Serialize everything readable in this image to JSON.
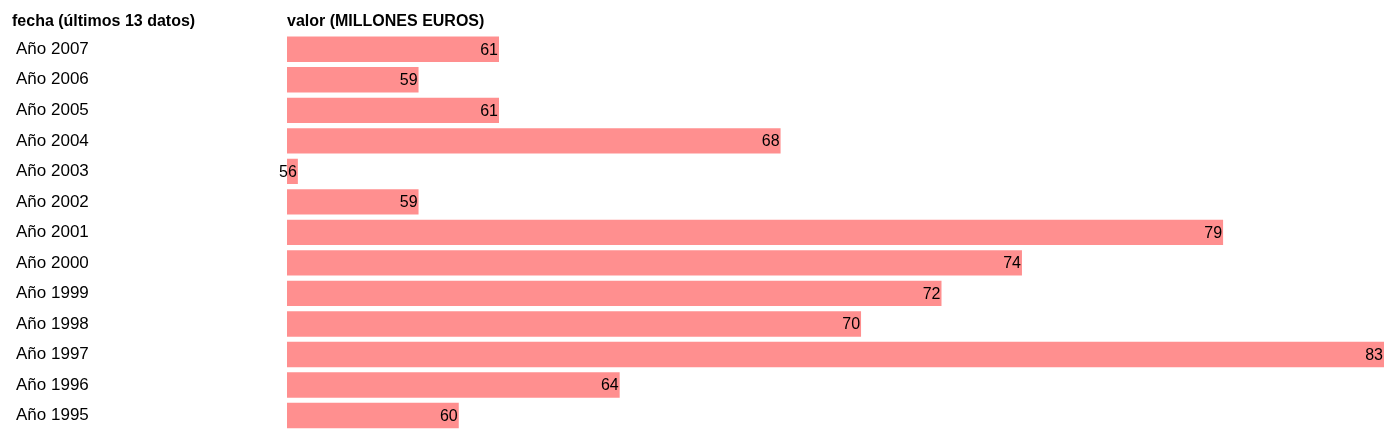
{
  "chart_data": {
    "type": "bar",
    "orientation": "horizontal",
    "ylabel": "fecha (últimos 13 datos)",
    "xlabel": "valor (MILLONES EUROS)",
    "categories": [
      "Año 2007",
      "Año 2006",
      "Año 2005",
      "Año 2004",
      "Año 2003",
      "Año 2002",
      "Año 2001",
      "Año 2000",
      "Año 1999",
      "Año 1998",
      "Año 1997",
      "Año 1996",
      "Año 1995"
    ],
    "values": [
      61,
      59,
      61,
      68,
      56,
      59,
      79,
      74,
      72,
      70,
      83,
      64,
      60
    ],
    "color": "#ff8f8f",
    "tick_labels": "y",
    "data_labels": true,
    "grid": false,
    "legend": false
  }
}
